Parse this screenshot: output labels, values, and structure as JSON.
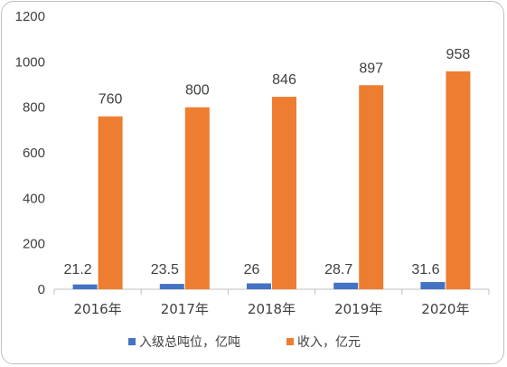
{
  "chart_data": {
    "type": "bar",
    "categories": [
      "2016年",
      "2017年",
      "2018年",
      "2019年",
      "2020年"
    ],
    "series": [
      {
        "name": "入级总吨位，亿吨",
        "values": [
          21.2,
          23.5,
          26,
          28.7,
          31.6
        ],
        "color": "#4472c4"
      },
      {
        "name": "收入，亿元",
        "values": [
          760,
          800,
          846,
          897,
          958
        ],
        "color": "#ed7d31"
      }
    ],
    "yticks": [
      0,
      200,
      400,
      600,
      800,
      1000,
      1200
    ],
    "ylim": [
      0,
      1200
    ],
    "grid": false,
    "legend_position": "bottom"
  }
}
